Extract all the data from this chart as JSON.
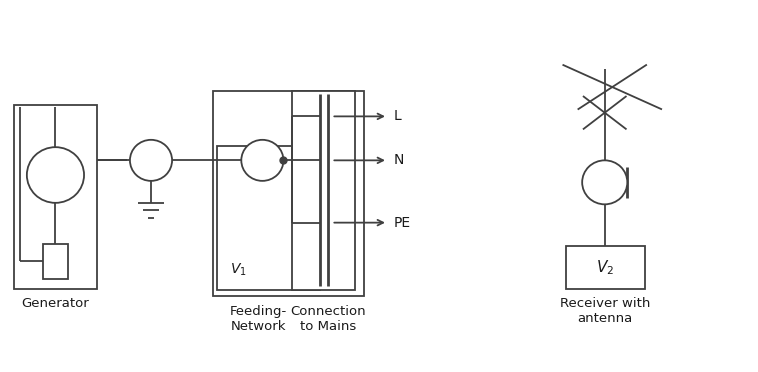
{
  "bg_color": "#ffffff",
  "line_color": "#404040",
  "text_color": "#1a1a1a",
  "fig_width": 7.58,
  "fig_height": 3.72,
  "dpi": 100,
  "labels": {
    "generator": "Generator",
    "feeding_network": "Feeding-\nNetwork",
    "connection_mains": "Connection\nto Mains",
    "receiver": "Receiver with\nantenna",
    "L": "L",
    "N": "N",
    "PE": "PE",
    "V1": "$V_1$",
    "V2": "$V_2$"
  },
  "xlim": [
    0,
    10
  ],
  "ylim": [
    0,
    5
  ]
}
